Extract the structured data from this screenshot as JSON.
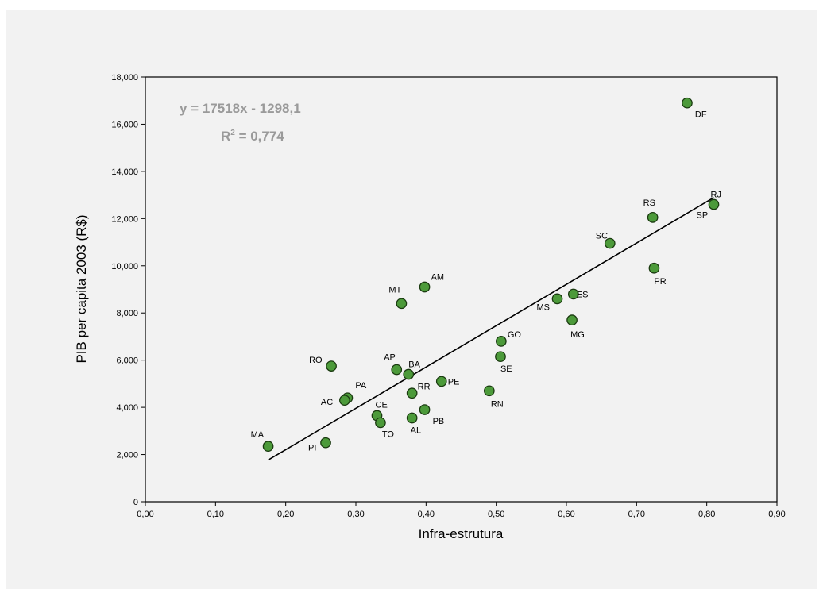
{
  "chart_data": {
    "type": "scatter",
    "xlabel": "Infra-estrutura",
    "ylabel": "PIB per capita 2003 (R$)",
    "xlim": [
      0,
      0.9
    ],
    "ylim": [
      0,
      18000
    ],
    "x_ticks": [
      0,
      0.1,
      0.2,
      0.3,
      0.4,
      0.5,
      0.6,
      0.7,
      0.8,
      0.9
    ],
    "x_tick_labels": [
      "0,00",
      "0,10",
      "0,20",
      "0,30",
      "0,40",
      "0,50",
      "0,60",
      "0,70",
      "0,80",
      "0,90"
    ],
    "y_ticks": [
      0,
      2000,
      4000,
      6000,
      8000,
      10000,
      12000,
      14000,
      16000,
      18000
    ],
    "y_tick_labels": [
      "0",
      "2,000",
      "4,000",
      "6,000",
      "8,000",
      "10,000",
      "12,000",
      "14,000",
      "16,000",
      "18,000"
    ],
    "equation": "y = 17518x - 1298,1",
    "r2_prefix": "R",
    "r2_sup": "2",
    "r2_suffix": " = 0,774",
    "grid": false,
    "marker_color": "#4c9a3a",
    "marker_edge": "#1a3a10",
    "trendline": {
      "slope": 17518,
      "intercept": -1298.1,
      "x_range": [
        0.175,
        0.81
      ]
    },
    "points": [
      {
        "label": "DF",
        "x": 0.772,
        "y": 16900
      },
      {
        "label": "RJ",
        "x": 0.81,
        "y": 12600
      },
      {
        "label": "SP",
        "x": 0.81,
        "y": 12600
      },
      {
        "label": "RS",
        "x": 0.723,
        "y": 12050
      },
      {
        "label": "SC",
        "x": 0.662,
        "y": 10950
      },
      {
        "label": "PR",
        "x": 0.725,
        "y": 9900
      },
      {
        "label": "AM",
        "x": 0.398,
        "y": 9100
      },
      {
        "label": "MT",
        "x": 0.365,
        "y": 8400
      },
      {
        "label": "ES",
        "x": 0.61,
        "y": 8800
      },
      {
        "label": "MS",
        "x": 0.587,
        "y": 8600
      },
      {
        "label": "MG",
        "x": 0.608,
        "y": 7700
      },
      {
        "label": "GO",
        "x": 0.507,
        "y": 6800
      },
      {
        "label": "SE",
        "x": 0.506,
        "y": 6150
      },
      {
        "label": "RO",
        "x": 0.265,
        "y": 5750
      },
      {
        "label": "AP",
        "x": 0.358,
        "y": 5600
      },
      {
        "label": "BA",
        "x": 0.375,
        "y": 5400
      },
      {
        "label": "PE",
        "x": 0.422,
        "y": 5100
      },
      {
        "label": "RR",
        "x": 0.38,
        "y": 4600
      },
      {
        "label": "RN",
        "x": 0.49,
        "y": 4700
      },
      {
        "label": "PA",
        "x": 0.288,
        "y": 4400
      },
      {
        "label": "AC",
        "x": 0.284,
        "y": 4300
      },
      {
        "label": "CE",
        "x": 0.33,
        "y": 3650
      },
      {
        "label": "TO",
        "x": 0.335,
        "y": 3350
      },
      {
        "label": "PB",
        "x": 0.398,
        "y": 3900
      },
      {
        "label": "AL",
        "x": 0.38,
        "y": 3550
      },
      {
        "label": "MA",
        "x": 0.175,
        "y": 2350
      },
      {
        "label": "PI",
        "x": 0.257,
        "y": 2500
      }
    ]
  }
}
